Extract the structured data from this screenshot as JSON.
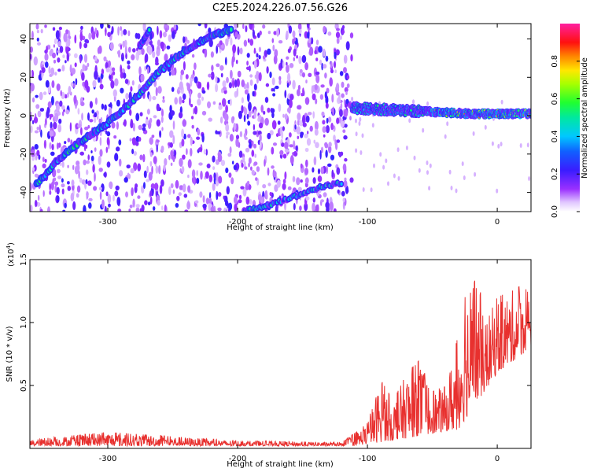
{
  "title": "C2E5.2024.226.07.56.G26",
  "chart_data": [
    {
      "type": "heatmap",
      "xlabel": "Height of straight line (km)",
      "ylabel": "Frequency (Hz)",
      "xlim": [
        -360,
        26
      ],
      "ylim": [
        -50,
        48
      ],
      "xticks": [
        -300,
        -200,
        -100,
        0
      ],
      "yticks": [
        -40,
        -20,
        0,
        20,
        40
      ],
      "grid": false,
      "colorbar": {
        "label": "Normalized spectral amplitude",
        "range": [
          0.0,
          1.0
        ],
        "ticks": [
          0.0,
          0.2,
          0.4,
          0.6,
          0.8
        ],
        "colormap": "rainbow (purple-blue-cyan-green-yellow-red-magenta)"
      },
      "features": {
        "ridge_upper": {
          "x": [
            -355,
            -340,
            -322,
            -300,
            -280,
            -262,
            -242,
            -222,
            -205
          ],
          "y": [
            -36,
            -24,
            -14,
            -4,
            8,
            22,
            33,
            41,
            45
          ]
        },
        "ridge_upper_left": {
          "x": [
            -275,
            -268
          ],
          "y": [
            37,
            44
          ]
        },
        "ridge_lower": {
          "x": [
            -195,
            -175,
            -155,
            -140,
            -120
          ],
          "y": [
            -50,
            -46,
            -42,
            -38,
            -35
          ]
        },
        "band_near_zero": {
          "x": [
            -112,
            -80,
            -50,
            -20,
            0,
            26
          ],
          "y": [
            4,
            3,
            2,
            1,
            1,
            1
          ]
        }
      }
    },
    {
      "type": "line",
      "xlabel": "Height of straight line (km)",
      "ylabel": "SNR (10 * v/v)",
      "scale_note": "(x10^4)",
      "xlim": [
        -360,
        26
      ],
      "ylim": [
        0,
        1.5
      ],
      "xticks": [
        -300,
        -200,
        -100,
        0
      ],
      "yticks": [
        0.5,
        1.0,
        1.5
      ],
      "grid": false,
      "color": "#e8302e",
      "series": [
        {
          "envelope_x": [
            -360,
            -300,
            -200,
            -120,
            -110,
            -100,
            -90,
            -80,
            -70,
            -60,
            -50,
            -40,
            -30,
            -25,
            -20,
            -15,
            -10,
            -5,
            0,
            10,
            20,
            26
          ],
          "envelope_y": [
            0.07,
            0.13,
            0.06,
            0.05,
            0.12,
            0.2,
            0.55,
            0.38,
            0.6,
            0.7,
            0.45,
            0.5,
            0.9,
            1.5,
            1.2,
            1.45,
            0.95,
            1.1,
            1.2,
            1.25,
            1.3,
            1.2
          ],
          "baseline_x": [
            -360,
            -200,
            -110,
            -90,
            -70,
            -50,
            -30,
            -20,
            0,
            26
          ],
          "baseline_y": [
            0.02,
            0.02,
            0.02,
            0.05,
            0.08,
            0.12,
            0.15,
            0.3,
            0.6,
            0.8
          ]
        }
      ]
    }
  ]
}
